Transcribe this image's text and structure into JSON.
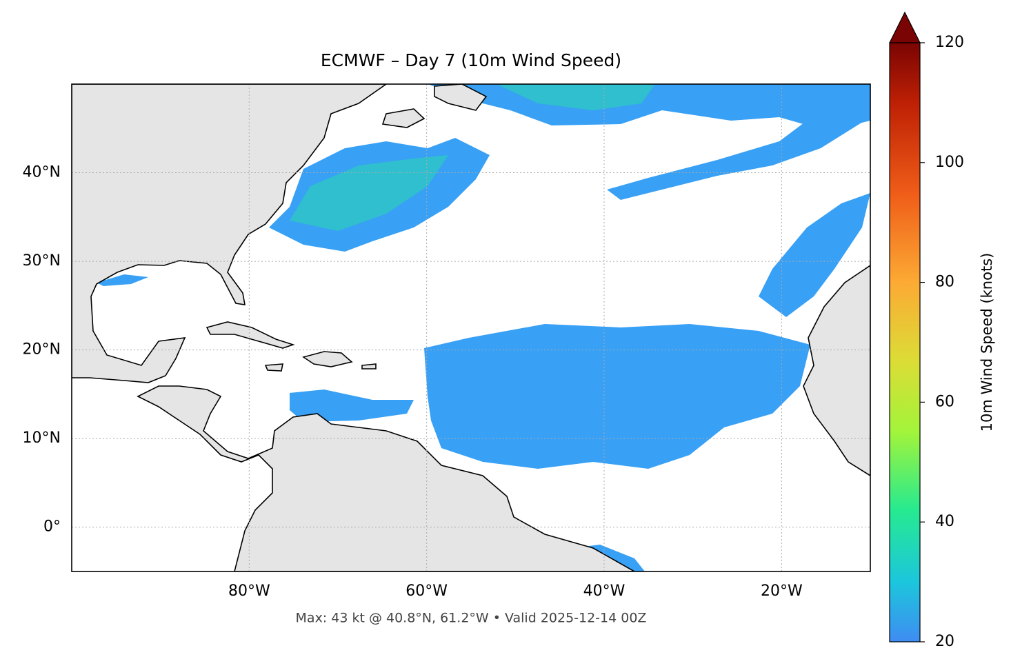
{
  "map": {
    "title": "ECMWF – Day 7 (10m Wind Speed)",
    "footer": "Max: 43 kt @ 40.8°N, 61.2°W • Valid 2025-12-14 00Z",
    "lonlim": [
      -100,
      -10
    ],
    "latlim": [
      -5,
      50
    ],
    "lon_ticks": [
      {
        "value": -80,
        "label": "80°W"
      },
      {
        "value": -60,
        "label": "60°W"
      },
      {
        "value": -40,
        "label": "40°W"
      },
      {
        "value": -20,
        "label": "20°W"
      }
    ],
    "lat_ticks": [
      {
        "value": 40,
        "label": "40°N"
      },
      {
        "value": 30,
        "label": "30°N"
      },
      {
        "value": 20,
        "label": "20°N"
      },
      {
        "value": 10,
        "label": "10°N"
      },
      {
        "value": 0,
        "label": "0°"
      }
    ],
    "colorbar": {
      "label": "10m Wind Speed (knots)",
      "lim": [
        20,
        120
      ],
      "ticks": [
        20,
        40,
        60,
        80,
        100,
        120
      ],
      "extend": "max"
    }
  }
}
